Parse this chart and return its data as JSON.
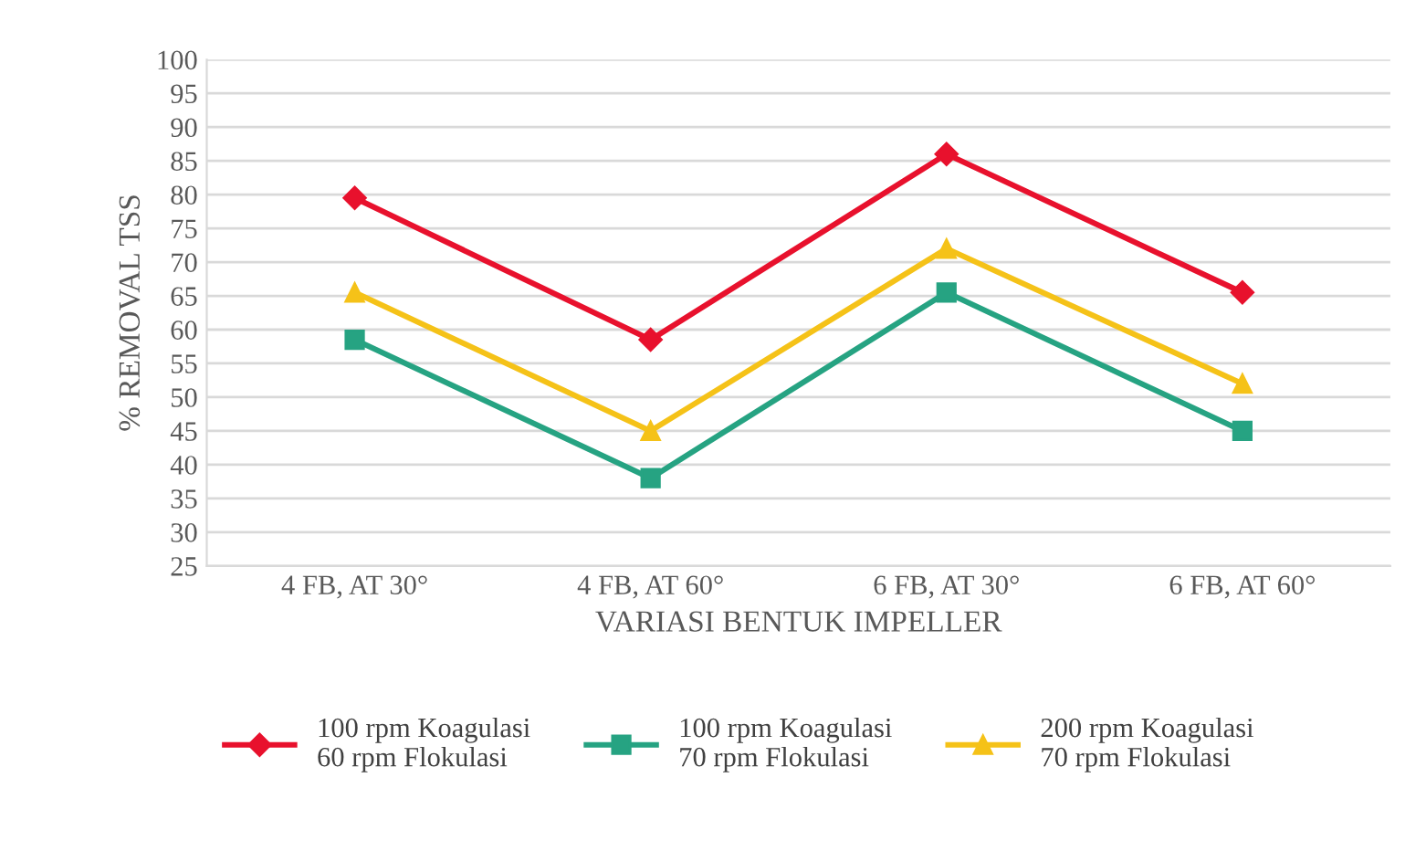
{
  "chart_data": {
    "type": "line",
    "xlabel": "VARIASI BENTUK IMPELLER",
    "ylabel": "% REMOVAL TSS",
    "categories": [
      "4 FB, AT 30°",
      "4 FB, AT 60°",
      "6 FB, AT 30°",
      "6 FB, AT 60°"
    ],
    "series": [
      {
        "name": "100 rpm Koagulasi\n60 rpm Flokulasi",
        "color": "#e8112d",
        "marker": "diamond",
        "values": [
          79.5,
          58.5,
          86,
          65.5
        ]
      },
      {
        "name": "100 rpm Koagulasi\n70 rpm Flokulasi",
        "color": "#26a382",
        "marker": "square",
        "values": [
          58.5,
          38,
          65.5,
          45
        ]
      },
      {
        "name": "200 rpm Koagulasi\n70 rpm Flokulasi",
        "color": "#f5c218",
        "marker": "triangle",
        "values": [
          65.5,
          45,
          72,
          52
        ]
      }
    ],
    "ylim": [
      25,
      100
    ],
    "yticks": [
      25,
      30,
      35,
      40,
      45,
      50,
      55,
      60,
      65,
      70,
      75,
      80,
      85,
      90,
      95,
      100
    ],
    "grid": "y",
    "legend": "bottom",
    "line_style": "solid"
  }
}
